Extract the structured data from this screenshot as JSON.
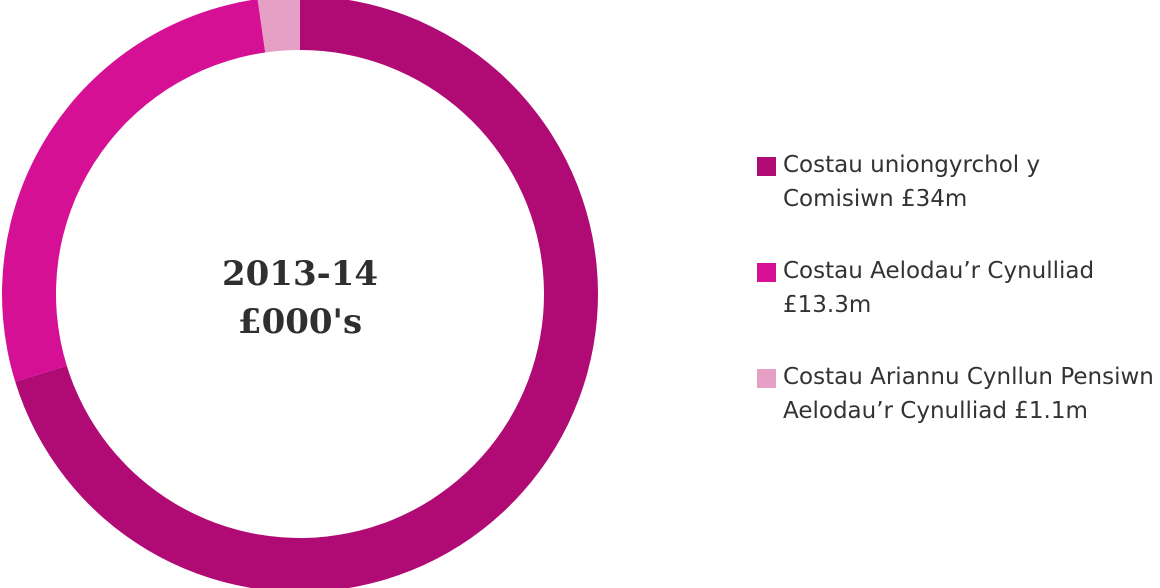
{
  "chart_data": {
    "type": "pie",
    "style": "donut",
    "center_label": [
      "2013-14",
      "£000's"
    ],
    "slices": [
      {
        "label": "Costau uniongyrchol y Comisiwn £34m",
        "value": 34,
        "color": "#b00b75"
      },
      {
        "label": "Costau Aelodau’r Cynulliad £13.3m",
        "value": 13.3,
        "color": "#d61094"
      },
      {
        "label": "Costau Ariannu Cynllun Pensiwn Aelodau’r Cynulliad £1.1m",
        "value": 1.1,
        "color": "#e6a0c6"
      }
    ],
    "legend_position": "right"
  }
}
